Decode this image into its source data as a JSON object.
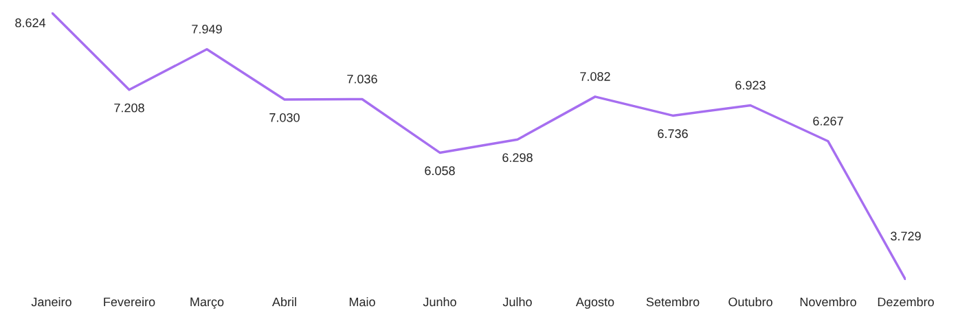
{
  "chart_data": {
    "type": "line",
    "categories": [
      "Janeiro",
      "Fevereiro",
      "Março",
      "Abril",
      "Maio",
      "Junho",
      "Julho",
      "Agosto",
      "Setembro",
      "Outubro",
      "Novembro",
      "Dezembro"
    ],
    "values": [
      8624,
      7208,
      7949,
      7030,
      7036,
      6058,
      6298,
      7082,
      6736,
      6923,
      6267,
      3729
    ],
    "value_labels": [
      "8.624",
      "7.208",
      "7.949",
      "7.030",
      "7.036",
      "6.058",
      "6.298",
      "7.082",
      "6.736",
      "6.923",
      "6.267",
      "3.729"
    ],
    "color": "#a66ef0"
  }
}
